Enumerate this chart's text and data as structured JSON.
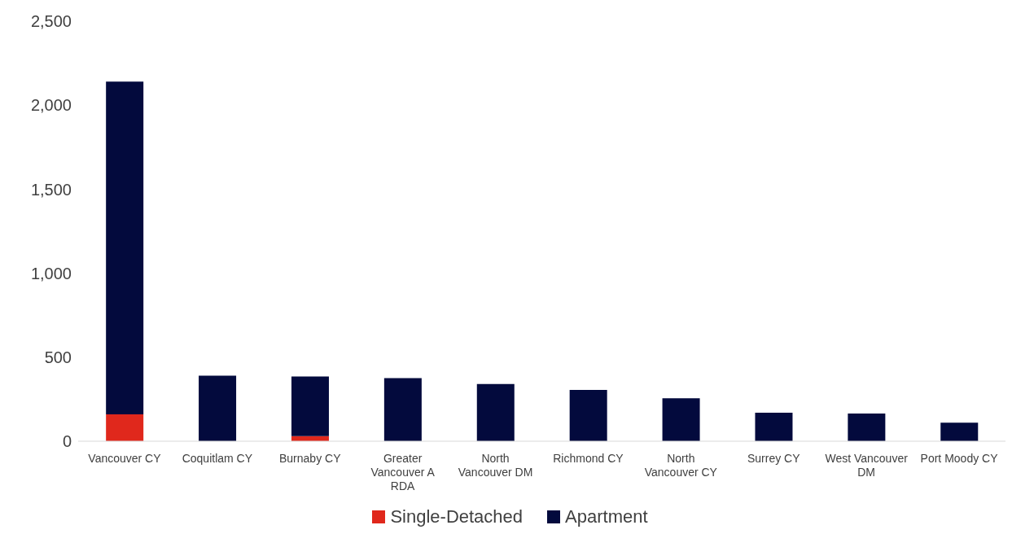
{
  "chart_data": {
    "type": "bar",
    "stacked": true,
    "categories": [
      "Vancouver CY",
      "Coquitlam CY",
      "Burnaby CY",
      "Greater Vancouver A RDA",
      "North Vancouver DM",
      "Richmond CY",
      "North Vancouver CY",
      "Surrey CY",
      "West Vancouver DM",
      "Port Moody CY"
    ],
    "series": [
      {
        "name": "Single-Detached",
        "color": "#e0281c",
        "values": [
          160,
          0,
          30,
          0,
          0,
          0,
          0,
          0,
          0,
          0
        ]
      },
      {
        "name": "Apartment",
        "color": "#030a3d",
        "values": [
          1980,
          390,
          355,
          375,
          340,
          305,
          255,
          170,
          165,
          110
        ]
      }
    ],
    "ylim": [
      0,
      2500
    ],
    "yticks": [
      0,
      500,
      {
        "value": 1000,
        "label": "1,000"
      },
      {
        "value": 1500,
        "label": "1,500"
      },
      {
        "value": 2000,
        "label": "2,000"
      },
      {
        "value": 2500,
        "label": "2,500"
      }
    ],
    "grid": false,
    "legend": "bottom"
  }
}
